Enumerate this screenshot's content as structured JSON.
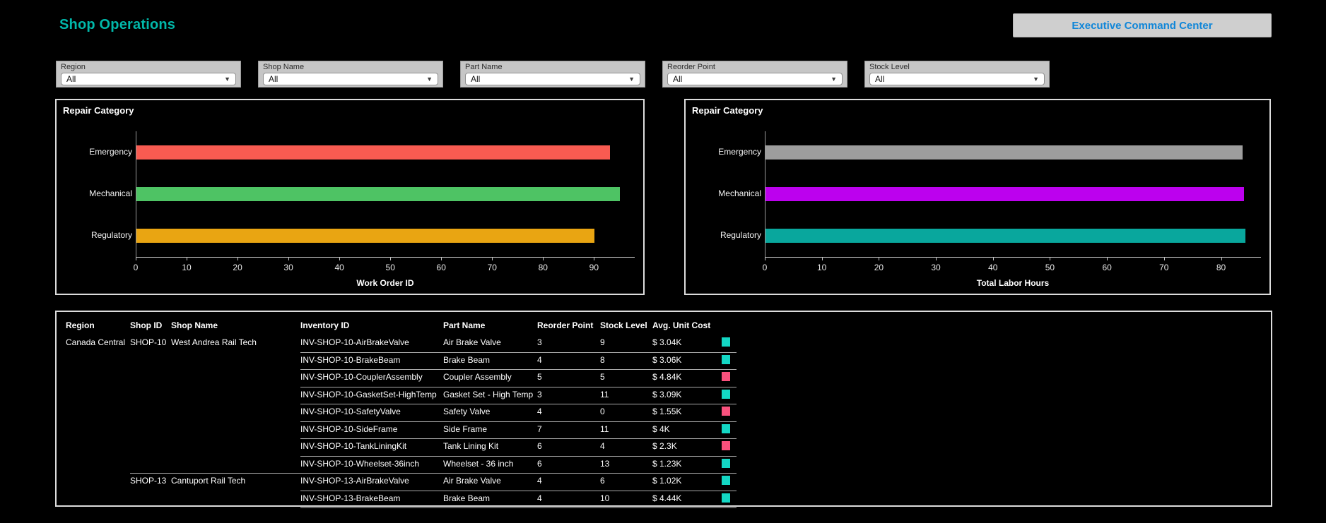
{
  "header": {
    "title": "Shop Operations",
    "nav_button_label": "Executive Command Center"
  },
  "filters": [
    {
      "label": "Region",
      "value": "All"
    },
    {
      "label": "Shop Name",
      "value": "All"
    },
    {
      "label": "Part Name",
      "value": "All"
    },
    {
      "label": "Reorder Point",
      "value": "All"
    },
    {
      "label": "Stock Level",
      "value": "All"
    }
  ],
  "colors": {
    "accent_teal": "#01B8AA",
    "button_text_blue": "#1086D8",
    "indicator_teal": "#13D7C4",
    "indicator_pink": "#F8517D"
  },
  "chart_data": [
    {
      "type": "bar",
      "orientation": "horizontal",
      "title": "Repair Category",
      "categories": [
        "Emergency",
        "Mechanical",
        "Regulatory"
      ],
      "values": [
        93,
        95,
        90
      ],
      "colors": [
        "#F85B51",
        "#4EC364",
        "#E9A512"
      ],
      "xlabel": "Work Order ID",
      "ylabel": "Repair Category",
      "xlim": [
        0,
        98
      ],
      "xticks": [
        0,
        10,
        20,
        30,
        40,
        50,
        60,
        70,
        80,
        90
      ],
      "grid": false,
      "legend": false
    },
    {
      "type": "bar",
      "orientation": "horizontal",
      "title": "Repair Category",
      "categories": [
        "Emergency",
        "Mechanical",
        "Regulatory"
      ],
      "values": [
        83.6,
        83.9,
        84.2
      ],
      "colors": [
        "#9D9D9D",
        "#BC01EE",
        "#09A79D"
      ],
      "xlabel": "Total Labor Hours",
      "ylabel": "Repair Category",
      "xlim": [
        0,
        87
      ],
      "xticks": [
        0,
        10,
        20,
        30,
        40,
        50,
        60,
        70,
        80
      ],
      "grid": false,
      "legend": false
    }
  ],
  "table": {
    "columns": [
      {
        "key": "region",
        "label": "Region"
      },
      {
        "key": "shop_id",
        "label": "Shop ID"
      },
      {
        "key": "shop_name",
        "label": "Shop Name"
      },
      {
        "key": "inventory_id",
        "label": "Inventory ID"
      },
      {
        "key": "part_name",
        "label": "Part Name"
      },
      {
        "key": "reorder_point",
        "label": "Reorder Point"
      },
      {
        "key": "stock_level",
        "label": "Stock Level"
      },
      {
        "key": "avg_unit_cost",
        "label": "Avg. Unit Cost"
      }
    ],
    "rows": [
      {
        "region": "Canada Central",
        "shop_id": "SHOP-10",
        "shop_name": "West Andrea Rail Tech",
        "inventory_id": "INV-SHOP-10-AirBrakeValve",
        "part_name": "Air Brake Valve",
        "reorder_point": "3",
        "stock_level": "9",
        "avg_unit_cost": "$ 3.04K",
        "indicator": "teal",
        "group_start": false
      },
      {
        "region": "",
        "shop_id": "",
        "shop_name": "",
        "inventory_id": "INV-SHOP-10-BrakeBeam",
        "part_name": "Brake Beam",
        "reorder_point": "4",
        "stock_level": "8",
        "avg_unit_cost": "$ 3.06K",
        "indicator": "teal",
        "group_start": false
      },
      {
        "region": "",
        "shop_id": "",
        "shop_name": "",
        "inventory_id": "INV-SHOP-10-CouplerAssembly",
        "part_name": "Coupler Assembly",
        "reorder_point": "5",
        "stock_level": "5",
        "avg_unit_cost": "$ 4.84K",
        "indicator": "pink",
        "group_start": false
      },
      {
        "region": "",
        "shop_id": "",
        "shop_name": "",
        "inventory_id": "INV-SHOP-10-GasketSet-HighTemp",
        "part_name": "Gasket Set - High Temp",
        "reorder_point": "3",
        "stock_level": "11",
        "avg_unit_cost": "$ 3.09K",
        "indicator": "teal",
        "group_start": false
      },
      {
        "region": "",
        "shop_id": "",
        "shop_name": "",
        "inventory_id": "INV-SHOP-10-SafetyValve",
        "part_name": "Safety Valve",
        "reorder_point": "4",
        "stock_level": "0",
        "avg_unit_cost": "$ 1.55K",
        "indicator": "pink",
        "group_start": false
      },
      {
        "region": "",
        "shop_id": "",
        "shop_name": "",
        "inventory_id": "INV-SHOP-10-SideFrame",
        "part_name": "Side Frame",
        "reorder_point": "7",
        "stock_level": "11",
        "avg_unit_cost": "$ 4K",
        "indicator": "teal",
        "group_start": false
      },
      {
        "region": "",
        "shop_id": "",
        "shop_name": "",
        "inventory_id": "INV-SHOP-10-TankLiningKit",
        "part_name": "Tank Lining Kit",
        "reorder_point": "6",
        "stock_level": "4",
        "avg_unit_cost": "$ 2.3K",
        "indicator": "pink",
        "group_start": false
      },
      {
        "region": "",
        "shop_id": "",
        "shop_name": "",
        "inventory_id": "INV-SHOP-10-Wheelset-36inch",
        "part_name": "Wheelset - 36 inch",
        "reorder_point": "6",
        "stock_level": "13",
        "avg_unit_cost": "$ 1.23K",
        "indicator": "teal",
        "group_start": false
      },
      {
        "region": "",
        "shop_id": "SHOP-13",
        "shop_name": "Cantuport Rail Tech",
        "inventory_id": "INV-SHOP-13-AirBrakeValve",
        "part_name": "Air Brake Valve",
        "reorder_point": "4",
        "stock_level": "6",
        "avg_unit_cost": "$ 1.02K",
        "indicator": "teal",
        "group_start": true
      },
      {
        "region": "",
        "shop_id": "",
        "shop_name": "",
        "inventory_id": "INV-SHOP-13-BrakeBeam",
        "part_name": "Brake Beam",
        "reorder_point": "4",
        "stock_level": "10",
        "avg_unit_cost": "$ 4.44K",
        "indicator": "teal",
        "group_start": false
      }
    ]
  }
}
